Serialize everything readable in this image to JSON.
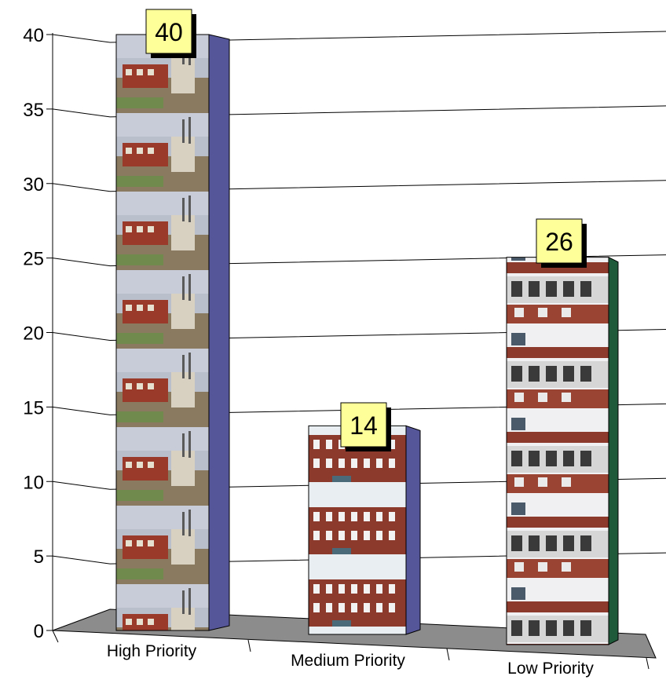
{
  "chart_data": {
    "type": "bar",
    "title": "",
    "xlabel": "",
    "ylabel": "",
    "categories": [
      "High Priority",
      "Medium Priority",
      "Low Priority"
    ],
    "values": [
      40,
      14,
      26
    ],
    "data_labels": [
      "40",
      "14",
      "26"
    ],
    "ylim": [
      0,
      40
    ],
    "yticks": [
      0,
      5,
      10,
      15,
      20,
      25,
      30,
      35,
      40
    ],
    "grid": true,
    "legend": "none",
    "style": "3d-column",
    "colors": {
      "side_faces": [
        "#55559a",
        "#55559a",
        "#1f5a3a"
      ],
      "floor": "#8c8c8c",
      "label_box": "#ffff99",
      "gridline": "#000000"
    }
  }
}
